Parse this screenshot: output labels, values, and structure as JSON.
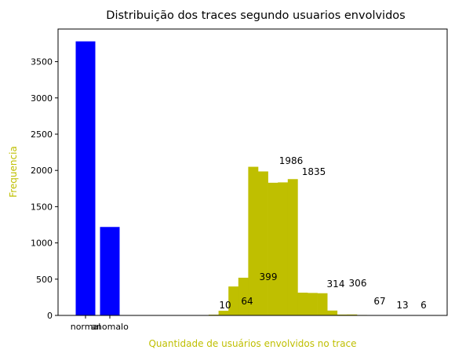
{
  "chart_data": {
    "type": "bar",
    "title": "Distribuição dos traces segundo usuarios envolvidos",
    "xlabel": "Quantidade de usuários envolvidos no trace",
    "ylabel": "Frequencia",
    "ylim": [
      0,
      3950
    ],
    "yticks": [
      0,
      500,
      1000,
      1500,
      2000,
      2500,
      3000,
      3500
    ],
    "grid": false,
    "colors": {
      "categories": "#0000ff",
      "histogram": "#bfbf00",
      "axis_label": "#bfbf00",
      "text": "#000000"
    },
    "categories": [
      "normal",
      "anomalo"
    ],
    "category_values": [
      3780,
      1220
    ],
    "histogram": {
      "name": "Quantidade de usuários envolvidos",
      "values": [
        10,
        64,
        399,
        520,
        2050,
        1986,
        1830,
        1835,
        1880,
        314,
        310,
        306,
        67,
        12,
        13,
        6
      ],
      "labels": [
        "10",
        "64",
        "399",
        "",
        "",
        "1986",
        "",
        "1835",
        "",
        "314",
        "",
        "306",
        "67",
        "",
        "13",
        "6"
      ]
    }
  }
}
